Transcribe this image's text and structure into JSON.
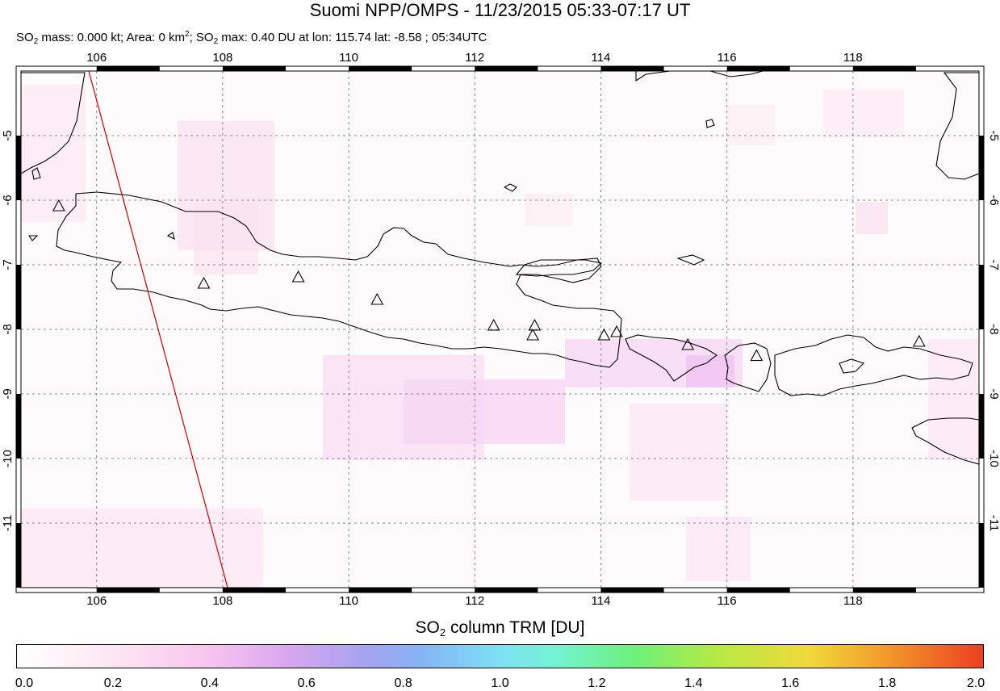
{
  "header": {
    "title": "Suomi NPP/OMPS - 11/23/2015 05:33-07:17 UT",
    "stats": {
      "so2_mass_label": "SO",
      "so2_mass_rest": " mass: 0.000 kt; Area: 0 km",
      "area_sup": "2",
      "so2_max_label": "; SO",
      "so2_max_rest": " max: 0.40 DU at lon: 115.74 lat: -8.58 ; 05:34UTC",
      "sub2": "2"
    }
  },
  "map": {
    "lon_range": [
      104.8,
      120.0
    ],
    "lat_range": [
      -12.0,
      -4.0
    ],
    "lon_ticks": [
      "106",
      "108",
      "110",
      "112",
      "114",
      "116",
      "118"
    ],
    "lat_ticks": [
      "-5",
      "-6",
      "-7",
      "-8",
      "-9",
      "-10",
      "-11"
    ],
    "grid_lines": "dashed",
    "volcano_marker": "triangle-icon",
    "colors": {
      "coastline": "#000000",
      "swath_edge": "#cc0000",
      "grid": "#888888"
    }
  },
  "colorbar": {
    "title_prefix": "SO",
    "title_sub": "2",
    "title_suffix": " column TRM [DU]",
    "range": [
      0.0,
      2.0
    ],
    "ticks": [
      "0.0",
      "0.2",
      "0.4",
      "0.6",
      "0.8",
      "1.0",
      "1.2",
      "1.4",
      "1.6",
      "1.8",
      "2.0"
    ]
  }
}
